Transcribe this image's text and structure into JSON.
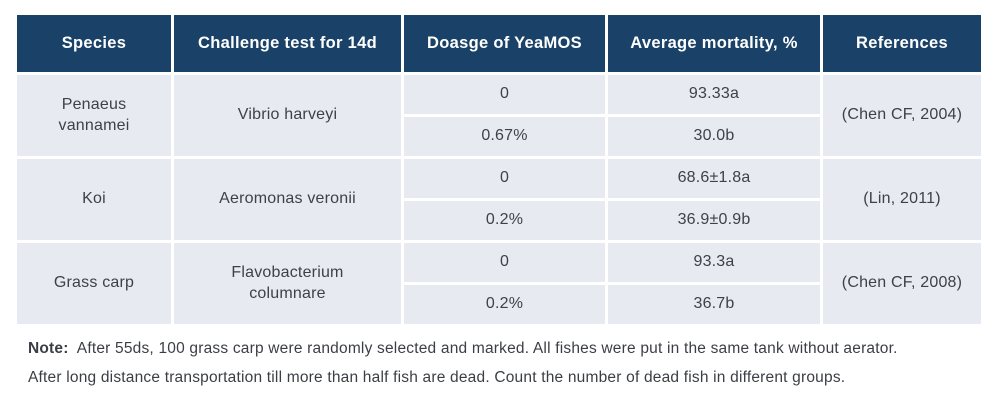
{
  "table": {
    "headers": [
      "Species",
      "Challenge test for 14d",
      "Doasge of YeaMOS",
      "Average mortality, %",
      "References"
    ],
    "rows": [
      {
        "species": "Penaeus\nvannamei",
        "challenge": "Vibrio harveyi",
        "doses": [
          "0",
          "0.67%"
        ],
        "mortality": [
          "93.33a",
          "30.0b"
        ],
        "reference": "(Chen CF, 2004)"
      },
      {
        "species": "Koi",
        "challenge": "Aeromonas veronii",
        "doses": [
          "0",
          "0.2%"
        ],
        "mortality": [
          "68.6±1.8a",
          "36.9±0.9b"
        ],
        "reference": "(Lin, 2011)"
      },
      {
        "species": "Grass carp",
        "challenge": "Flavobacterium\ncolumnare",
        "doses": [
          "0",
          "0.2%"
        ],
        "mortality": [
          "93.3a",
          "36.7b"
        ],
        "reference": "(Chen CF, 2008)"
      }
    ]
  },
  "note": {
    "label": "Note:",
    "line1": "After 55ds, 100 grass carp were randomly selected and marked.  All fishes were put in the same tank without aerator.",
    "line2": "After long distance transportation till more than half fish are dead. Count the number of dead fish in different groups."
  },
  "colors": {
    "header_bg": "#1a4268",
    "cell_bg": "#e7ebf1",
    "text": "#3e4147"
  }
}
